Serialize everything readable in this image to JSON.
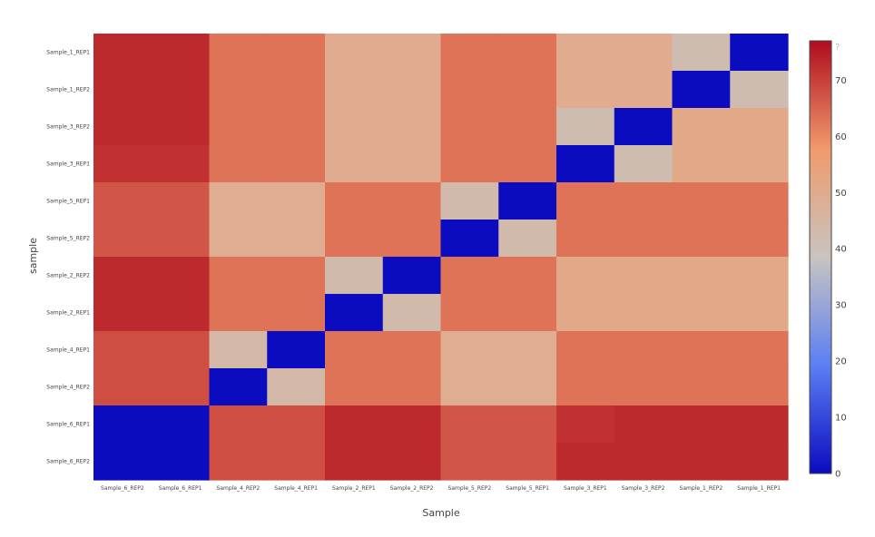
{
  "chart_data": {
    "type": "heatmap",
    "xlabel": "Sample",
    "ylabel": "sample",
    "x": [
      "Sample_6_REP2",
      "Sample_6_REP1",
      "Sample_4_REP2",
      "Sample_4_REP1",
      "Sample_2_REP1",
      "Sample_2_REP2",
      "Sample_5_REP2",
      "Sample_5_REP1",
      "Sample_3_REP1",
      "Sample_3_REP2",
      "Sample_1_REP2",
      "Sample_1_REP1"
    ],
    "y": [
      "Sample_1_REP1",
      "Sample_1_REP2",
      "Sample_3_REP2",
      "Sample_3_REP1",
      "Sample_5_REP1",
      "Sample_5_REP2",
      "Sample_2_REP2",
      "Sample_2_REP1",
      "Sample_4_REP1",
      "Sample_4_REP2",
      "Sample_6_REP1",
      "Sample_6_REP2"
    ],
    "z": [
      [
        73,
        73,
        63,
        63,
        50,
        50,
        63,
        63,
        50,
        50,
        42,
        0
      ],
      [
        73,
        73,
        63,
        63,
        50,
        50,
        63,
        63,
        50,
        50,
        0,
        42
      ],
      [
        73,
        73,
        63,
        63,
        50,
        50,
        63,
        63,
        42,
        0,
        51,
        51
      ],
      [
        72,
        72,
        63,
        63,
        50,
        50,
        63,
        63,
        0,
        42,
        51,
        51
      ],
      [
        67,
        67,
        49,
        49,
        63,
        63,
        43,
        0,
        63,
        63,
        63,
        63
      ],
      [
        67,
        67,
        49,
        49,
        63,
        63,
        0,
        43,
        63,
        63,
        63,
        63
      ],
      [
        73,
        73,
        63,
        63,
        43,
        0,
        63,
        63,
        51,
        51,
        51,
        51
      ],
      [
        73,
        73,
        63,
        63,
        0,
        43,
        63,
        63,
        51,
        51,
        51,
        51
      ],
      [
        68,
        68,
        44,
        0,
        63,
        63,
        49,
        49,
        63,
        63,
        63,
        63
      ],
      [
        68,
        68,
        0,
        44,
        63,
        63,
        49,
        49,
        63,
        63,
        63,
        63
      ],
      [
        0,
        0,
        68,
        68,
        73,
        73,
        67,
        67,
        72,
        73,
        73,
        73
      ],
      [
        0,
        0,
        68,
        68,
        73,
        73,
        67,
        67,
        73,
        73,
        73,
        73
      ]
    ],
    "colorscale": "coolwarm",
    "colorbar": {
      "title": "?",
      "range": [
        0,
        77
      ],
      "ticks": [
        0,
        10,
        20,
        30,
        40,
        50,
        60,
        70
      ]
    }
  }
}
